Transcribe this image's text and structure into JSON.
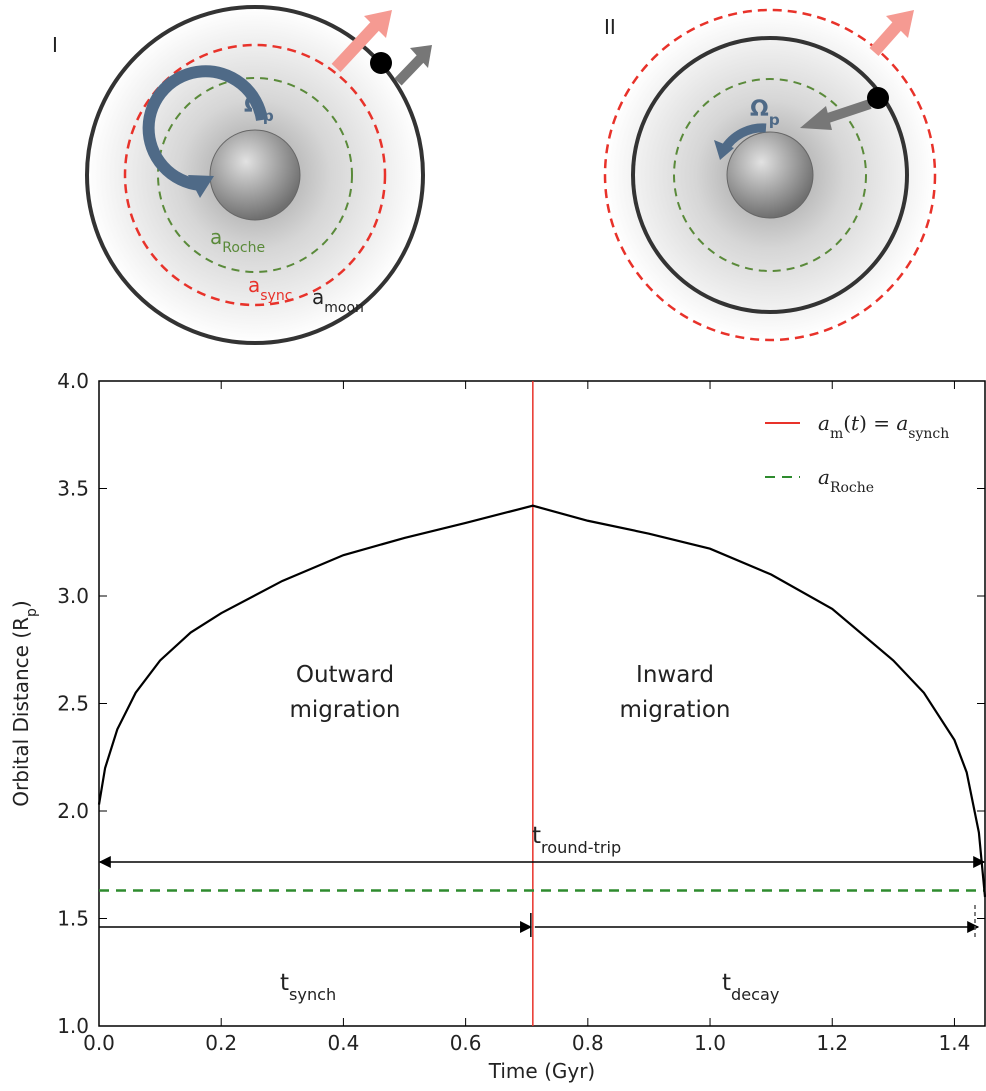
{
  "diagrams": [
    {
      "label": "I",
      "omega": [
        {
          "text": "Ω"
        },
        {
          "text": "p",
          "sub": true
        }
      ],
      "roche": [
        {
          "text": "a"
        },
        {
          "text": "Roche",
          "sub": true
        }
      ],
      "sync": [
        {
          "text": "a"
        },
        {
          "text": "sync",
          "sub": true
        }
      ],
      "moon": [
        {
          "text": "a"
        },
        {
          "text": "moon",
          "sub": true
        }
      ]
    },
    {
      "label": "II",
      "omega": [
        {
          "text": "Ω"
        },
        {
          "text": "p",
          "sub": true
        }
      ]
    }
  ],
  "chart_data": {
    "type": "line",
    "xlabel": "Time (Gyr)",
    "ylabel": [
      {
        "text": "Orbital Distance (R"
      },
      {
        "text": "p",
        "sub": true
      },
      {
        "text": ")"
      }
    ],
    "xlim": [
      0,
      1.45
    ],
    "ylim": [
      1.0,
      4.0
    ],
    "xticks": [
      {
        "value": 0,
        "label": "0.0"
      },
      0.2,
      0.4,
      0.6,
      0.8,
      {
        "value": 1,
        "label": "1.0"
      },
      1.2,
      1.4
    ],
    "yticks": [
      {
        "value": 1,
        "label": "1.0"
      },
      1.5,
      {
        "value": 2,
        "label": "2.0"
      },
      2.5,
      {
        "value": 3,
        "label": "3.0"
      },
      3.5,
      {
        "value": 4,
        "label": "4.0"
      }
    ],
    "series": [
      {
        "color": "#000000",
        "x": [
          0,
          0.01,
          0.03,
          0.06,
          0.1,
          0.15,
          0.2,
          0.3,
          0.4,
          0.5,
          0.6,
          0.71,
          0.8,
          0.9,
          1.0,
          1.1,
          1.2,
          1.3,
          1.35,
          1.4,
          1.42,
          1.44,
          1.45
        ],
        "values": [
          2.03,
          2.2,
          2.38,
          2.55,
          2.7,
          2.83,
          2.92,
          3.07,
          3.19,
          3.27,
          3.34,
          3.42,
          3.35,
          3.29,
          3.22,
          3.1,
          2.94,
          2.7,
          2.55,
          2.33,
          2.18,
          1.9,
          1.6
        ]
      }
    ],
    "reference_lines": [
      {
        "axis": "x",
        "value": 0.71,
        "color": "#e8322a",
        "dash": false,
        "name": [
          {
            "text": "a",
            "italic": true
          },
          {
            "text": "m",
            "sub": true
          },
          {
            "text": "(",
            "italic": false
          },
          {
            "text": "t",
            "italic": true
          },
          {
            "text": ") = "
          },
          {
            "text": "a",
            "italic": true
          },
          {
            "text": "synch",
            "sub": true
          }
        ]
      },
      {
        "axis": "y",
        "value": 1.63,
        "color": "#2e8b2e",
        "dash": true,
        "name": [
          {
            "text": "a",
            "italic": true
          },
          {
            "text": "Roche",
            "sub": true
          }
        ]
      }
    ],
    "legend": "upper right",
    "annotations": [
      {
        "lines": [
          "Outward",
          "migration"
        ]
      },
      {
        "lines": [
          "Inward",
          "migration"
        ]
      }
    ],
    "timescales": {
      "round_trip": [
        {
          "text": "t"
        },
        {
          "text": "round-trip",
          "sub": true
        }
      ],
      "synch": [
        {
          "text": "t"
        },
        {
          "text": "synch",
          "sub": true
        }
      ],
      "decay": [
        {
          "text": "t"
        },
        {
          "text": "decay",
          "sub": true
        }
      ]
    }
  }
}
